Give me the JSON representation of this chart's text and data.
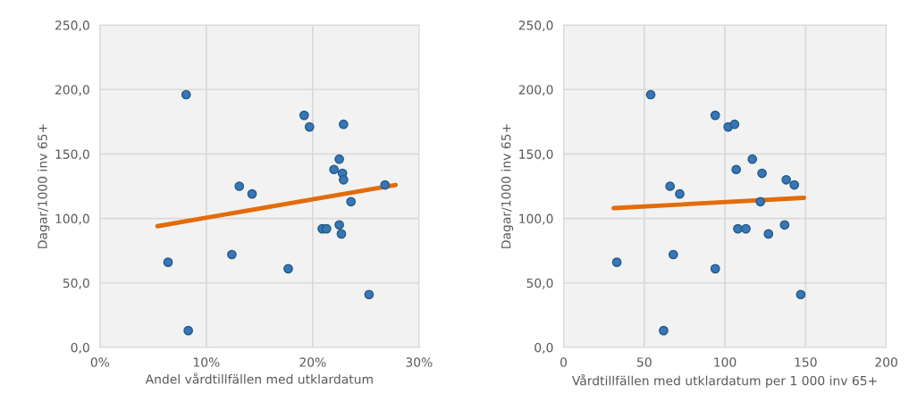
{
  "chart_data": [
    {
      "type": "scatter",
      "xlabel": "Andel vårdtillfällen med utklardatum",
      "ylabel": "Dagar/1000 inv 65+",
      "xlim": [
        0,
        30
      ],
      "ylim": [
        0,
        250
      ],
      "xticks": [
        {
          "value": 0,
          "label": "0%"
        },
        {
          "value": 10,
          "label": "10%"
        },
        {
          "value": 20,
          "label": "20%"
        },
        {
          "value": 30,
          "label": "30%"
        }
      ],
      "yticks": [
        {
          "value": 0,
          "label": "0,0"
        },
        {
          "value": 50,
          "label": "50,0"
        },
        {
          "value": 100,
          "label": "100,0"
        },
        {
          "value": 150,
          "label": "150,0"
        },
        {
          "value": 200,
          "label": "200,0"
        },
        {
          "value": 250,
          "label": "250,0"
        }
      ],
      "grid": true,
      "series": [
        {
          "marker": "circle",
          "color": "#3a75b8",
          "x": [
            8.1,
            19.2,
            19.7,
            22.9,
            22.5,
            22.0,
            22.8,
            22.9,
            26.8,
            13.1,
            14.3,
            23.6,
            20.9,
            21.3,
            22.5,
            22.7,
            6.4,
            12.4,
            17.7,
            25.3,
            8.3
          ],
          "values": [
            196,
            180,
            171,
            173,
            146,
            138,
            135,
            130,
            126,
            125,
            119,
            113,
            92,
            92,
            95,
            88,
            66,
            72,
            61,
            41,
            13
          ]
        },
        {
          "type": "line",
          "color": "#e36c09",
          "x": [
            5.4,
            27.8
          ],
          "values": [
            94,
            126
          ]
        }
      ]
    },
    {
      "type": "scatter",
      "xlabel": "Vårdtillfällen med utklardatum per 1 000 inv 65+",
      "ylabel": "Dagar/1000 inv 65+",
      "xlim": [
        0,
        200
      ],
      "ylim": [
        0,
        250
      ],
      "xticks": [
        0,
        50,
        100,
        150,
        200
      ],
      "yticks": [
        {
          "value": 0,
          "label": "0,0"
        },
        {
          "value": 50,
          "label": "50,0"
        },
        {
          "value": 100,
          "label": "100,0"
        },
        {
          "value": 150,
          "label": "150,0"
        },
        {
          "value": 200,
          "label": "200,0"
        },
        {
          "value": 250,
          "label": "250,0"
        }
      ],
      "grid": true,
      "series": [
        {
          "marker": "circle",
          "color": "#3a75b8",
          "x": [
            54,
            94,
            102,
            106,
            117,
            107,
            123,
            138,
            143,
            66,
            72,
            122,
            108,
            113,
            137,
            127,
            33,
            68,
            94,
            147,
            62
          ],
          "values": [
            196,
            180,
            171,
            173,
            146,
            138,
            135,
            130,
            126,
            125,
            119,
            113,
            92,
            92,
            95,
            88,
            66,
            72,
            61,
            41,
            13
          ]
        },
        {
          "type": "line",
          "color": "#e36c09",
          "x": [
            31,
            149
          ],
          "values": [
            108,
            116
          ]
        }
      ]
    }
  ]
}
